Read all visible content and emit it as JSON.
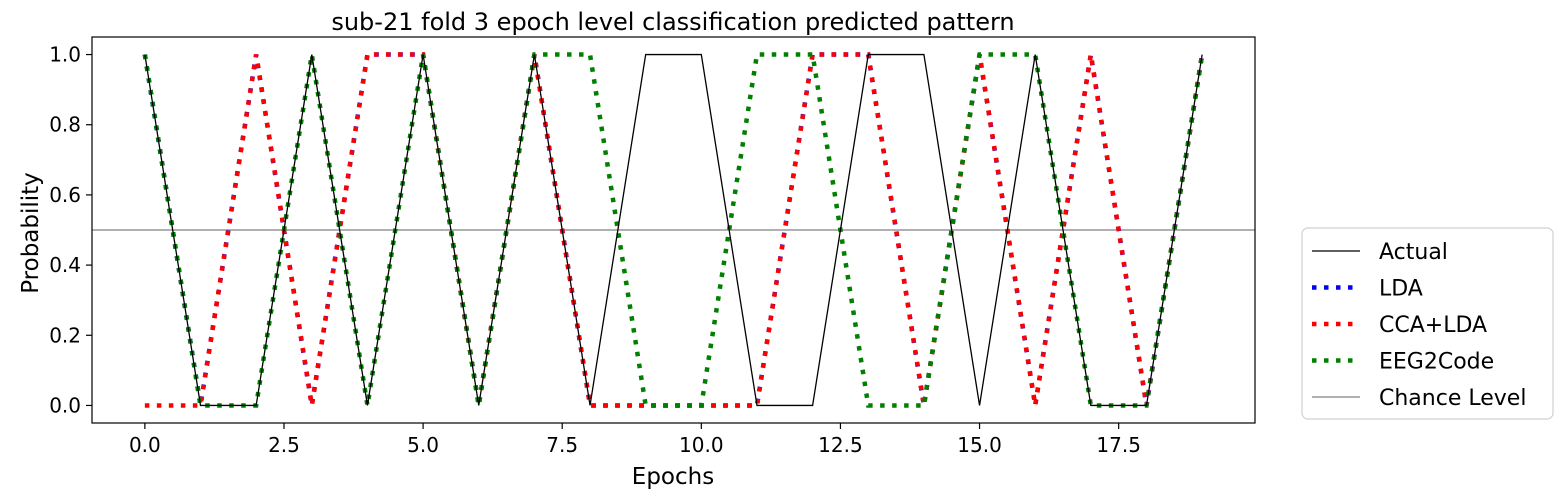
{
  "chart_data": {
    "type": "line",
    "title": "sub-21 fold 3 epoch level classification predicted pattern",
    "xlabel": "Epochs",
    "ylabel": "Probability",
    "xlim": [
      -0.95,
      19.95
    ],
    "ylim": [
      -0.05,
      1.05
    ],
    "xticks": [
      0.0,
      2.5,
      5.0,
      7.5,
      10.0,
      12.5,
      15.0,
      17.5
    ],
    "xtick_labels": [
      "0.0",
      "2.5",
      "5.0",
      "7.5",
      "10.0",
      "12.5",
      "15.0",
      "17.5"
    ],
    "yticks": [
      0.0,
      0.2,
      0.4,
      0.6,
      0.8,
      1.0
    ],
    "ytick_labels": [
      "0.0",
      "0.2",
      "0.4",
      "0.6",
      "0.8",
      "1.0"
    ],
    "grid": false,
    "legend_position": "outside-right",
    "x": [
      0,
      1,
      2,
      3,
      4,
      5,
      6,
      7,
      8,
      9,
      10,
      11,
      12,
      13,
      14,
      15,
      16,
      17,
      18,
      19
    ],
    "series": [
      {
        "name": "Actual",
        "style": "solid",
        "color": "#000000",
        "values": [
          1,
          0,
          0,
          1,
          0,
          1,
          0,
          1,
          0,
          1,
          1,
          0,
          0,
          1,
          1,
          0,
          1,
          0,
          0,
          1
        ]
      },
      {
        "name": "LDA",
        "style": "dotted",
        "color": "#0000ff",
        "values": [
          1,
          0,
          1,
          0,
          1,
          1,
          0,
          1,
          0,
          0,
          0,
          0,
          1,
          1,
          0,
          1,
          0,
          1,
          0,
          1
        ]
      },
      {
        "name": "CCA+LDA",
        "style": "dotted",
        "color": "#ff0000",
        "values": [
          0,
          0,
          1,
          0,
          1,
          1,
          0,
          1,
          0,
          0,
          0,
          0,
          1,
          1,
          0,
          1,
          0,
          1,
          0,
          1
        ]
      },
      {
        "name": "EEG2Code",
        "style": "dotted",
        "color": "#008000",
        "values": [
          1,
          0,
          0,
          1,
          0,
          1,
          0,
          1,
          1,
          0,
          0,
          1,
          1,
          0,
          0,
          1,
          1,
          0,
          0,
          1
        ]
      }
    ],
    "reference_line": {
      "name": "Chance Level",
      "y": 0.5,
      "color": "#808080"
    }
  }
}
